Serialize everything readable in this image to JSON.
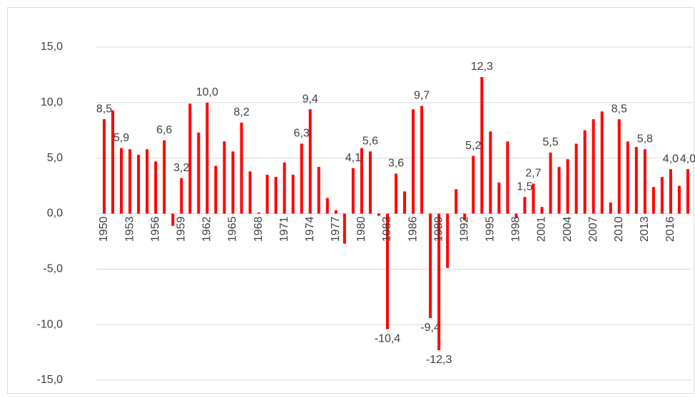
{
  "chart_data": {
    "type": "bar",
    "categories": [
      "1950",
      null,
      null,
      "1953",
      null,
      null,
      "1956",
      null,
      null,
      "1959",
      null,
      null,
      "1962",
      null,
      null,
      "1965",
      null,
      null,
      "1968",
      null,
      null,
      "1971",
      null,
      null,
      "1974",
      null,
      null,
      "1977",
      null,
      null,
      "1980",
      null,
      null,
      "1983",
      null,
      null,
      "1986",
      null,
      null,
      "1989",
      null,
      null,
      "1992",
      null,
      null,
      "1995",
      null,
      null,
      "1998",
      null,
      null,
      "2001",
      null,
      null,
      "2004",
      null,
      null,
      "2007",
      null,
      null,
      "2010",
      null,
      null,
      "2013",
      null,
      null,
      "2016",
      null,
      null
    ],
    "values": [
      8.5,
      9.3,
      5.9,
      5.8,
      5.3,
      5.8,
      4.7,
      6.6,
      -1.1,
      3.2,
      9.9,
      7.3,
      10.0,
      4.3,
      6.5,
      5.6,
      8.2,
      3.8,
      0.1,
      3.5,
      3.3,
      4.6,
      3.5,
      6.3,
      9.4,
      4.2,
      1.4,
      0.3,
      -2.7,
      4.1,
      5.9,
      5.6,
      -0.2,
      -10.4,
      3.6,
      2.0,
      9.4,
      9.7,
      -9.4,
      -12.3,
      -4.9,
      2.2,
      -0.6,
      5.2,
      12.3,
      7.4,
      2.8,
      6.5,
      -0.4,
      1.5,
      2.7,
      0.6,
      5.5,
      4.2,
      4.9,
      6.3,
      7.5,
      8.5,
      9.2,
      1.0,
      8.5,
      6.5,
      6.0,
      5.8,
      2.4,
      3.3,
      4.0,
      2.5,
      4.0
    ],
    "value_labels": [
      "8,5",
      null,
      "5,9",
      null,
      null,
      null,
      null,
      "6,6",
      null,
      "3,2",
      null,
      null,
      "10,0",
      null,
      null,
      null,
      "8,2",
      null,
      null,
      null,
      null,
      null,
      null,
      "6,3",
      "9,4",
      null,
      null,
      null,
      null,
      "4,1",
      null,
      "5,6",
      null,
      "-10,4",
      "3,6",
      null,
      null,
      "9,7",
      "-9,4",
      "-12,3",
      null,
      null,
      null,
      "5,2",
      "12,3",
      null,
      null,
      null,
      null,
      "1,5",
      "2,7",
      null,
      "5,5",
      null,
      null,
      null,
      null,
      null,
      null,
      null,
      "8,5",
      null,
      null,
      "5,8",
      null,
      null,
      "4,0",
      null,
      "4,0"
    ],
    "color": "#ff0000",
    "ylim": [
      -15,
      15
    ],
    "yticks": [
      {
        "value": -15,
        "label": "-15,0"
      },
      {
        "value": -10,
        "label": "-10,0"
      },
      {
        "value": -5,
        "label": "-5,0"
      },
      {
        "value": 0,
        "label": "0,0"
      },
      {
        "value": 5,
        "label": "5,0"
      },
      {
        "value": 10,
        "label": "10,0"
      },
      {
        "value": 15,
        "label": "15,0"
      }
    ],
    "grid": true
  }
}
